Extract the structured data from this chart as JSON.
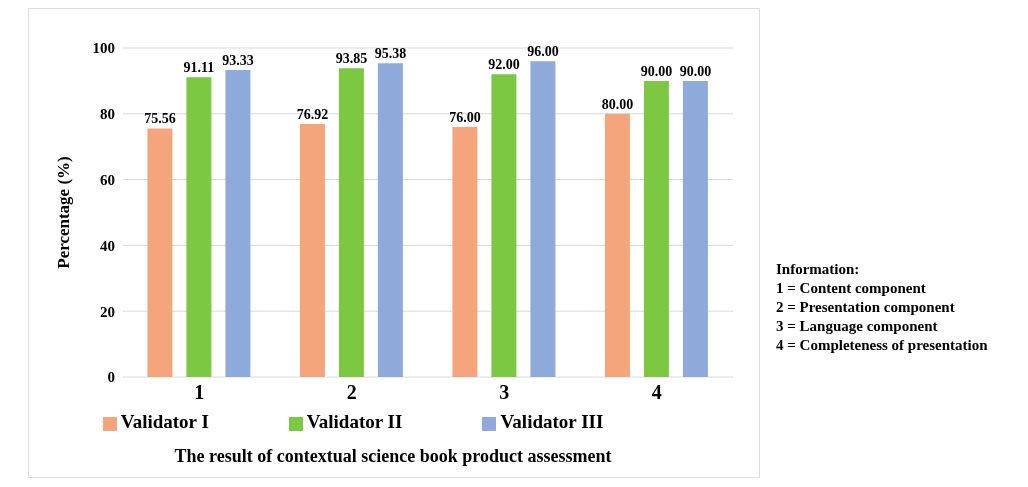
{
  "chart_data": {
    "type": "bar",
    "title": "The result of contextual science book product assessment",
    "ylabel": "Percentage (%)",
    "categories": [
      "1",
      "2",
      "3",
      "4"
    ],
    "series": [
      {
        "name": "Validator I",
        "color": "#f4a57c",
        "values": [
          75.56,
          76.92,
          76.0,
          80.0
        ],
        "value_labels": [
          "75.56",
          "76.92",
          "76.00",
          "80.00"
        ]
      },
      {
        "name": "Validator II",
        "color": "#7cc843",
        "values": [
          91.11,
          93.85,
          92.0,
          90.0
        ],
        "value_labels": [
          "91.11",
          "93.85",
          "92.00",
          "90.00"
        ]
      },
      {
        "name": "Validator III",
        "color": "#8eaadb",
        "values": [
          93.33,
          95.38,
          96.0,
          90.0
        ],
        "value_labels": [
          "93.33",
          "95.38",
          "96.00",
          "90.00"
        ]
      }
    ],
    "ylim": [
      0,
      100
    ],
    "yticks": [
      0,
      20,
      40,
      60,
      80,
      100
    ],
    "grid": "y",
    "legend": "bottom",
    "annotations": [
      "Information:",
      "1 = Content component",
      "2 = Presentation component",
      "3 = Language component",
      "4 = Completeness of presentation"
    ]
  }
}
